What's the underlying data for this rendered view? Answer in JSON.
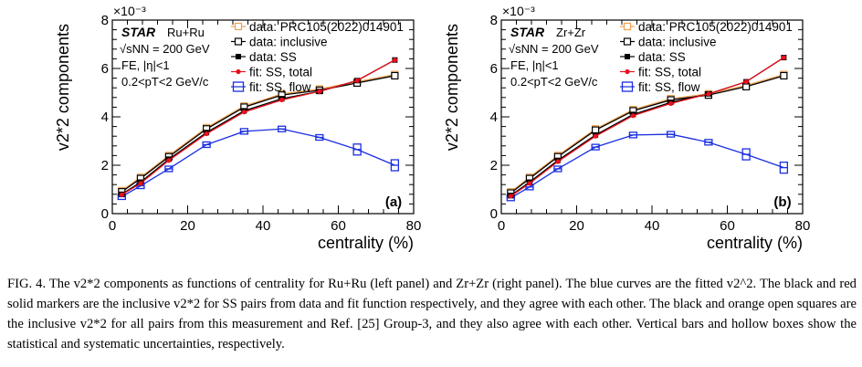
{
  "figure_label": "FIG. 4.",
  "caption": "The v2*2 components as functions of centrality for Ru+Ru (left panel) and Zr+Zr (right panel). The blue curves are the fitted v2^2. The black and red solid markers are the inclusive v2*2 for SS pairs from data and fit function respectively, and they agree with each other. The black and orange open squares are the inclusive v2*2 for all pairs from this measurement and Ref. [25] Group-3, and they also agree with each other. Vertical bars and hollow boxes show the statistical and systematic uncertainties, respectively.",
  "colors": {
    "black": "#000000",
    "red": "#e8101c",
    "orange": "#f0a050",
    "blue": "#1a2ee0"
  },
  "chart_data": [
    {
      "type": "line",
      "panel_label": "(a)",
      "experiment": "STAR",
      "system": "Ru+Ru",
      "energy": "√sNN = 200 GeV",
      "cut1": "FE, |η|<1",
      "cut2": "0.2<pT<2 GeV/c",
      "xlabel": "centrality (%)",
      "ylabel": "v2*2 components",
      "y_multiplier": "×10⁻³",
      "xlim": [
        0,
        80
      ],
      "ylim": [
        0,
        8
      ],
      "x_ticks": [
        0,
        20,
        40,
        60,
        80
      ],
      "y_ticks": [
        0,
        2,
        4,
        6,
        8
      ],
      "legend_position": "top-right",
      "series": [
        {
          "name": "data: PRC105(2022)014901",
          "color": "#f0a050",
          "marker": "open-square",
          "x": [
            2.5,
            7.5,
            15,
            25,
            35,
            45,
            55,
            65,
            75
          ],
          "y": [
            0.95,
            1.5,
            2.4,
            3.55,
            4.45,
            4.95,
            5.15,
            5.45,
            5.75
          ]
        },
        {
          "name": "data: inclusive",
          "color": "#000000",
          "marker": "open-square",
          "x": [
            2.5,
            7.5,
            15,
            25,
            35,
            45,
            55,
            65,
            75
          ],
          "y": [
            0.9,
            1.45,
            2.35,
            3.5,
            4.4,
            4.9,
            5.1,
            5.4,
            5.7
          ]
        },
        {
          "name": "data: SS",
          "color": "#000000",
          "marker": "filled-square",
          "x": [
            2.5,
            7.5,
            15,
            25,
            35,
            45,
            55,
            65,
            75
          ],
          "y": [
            0.8,
            1.3,
            2.25,
            3.35,
            4.25,
            4.75,
            5.05,
            5.5,
            6.35
          ]
        },
        {
          "name": "fit: SS, total",
          "color": "#e8101c",
          "marker": "filled-circle",
          "x": [
            2.5,
            7.5,
            15,
            25,
            35,
            45,
            55,
            65,
            75
          ],
          "y": [
            0.78,
            1.25,
            2.2,
            3.3,
            4.2,
            4.7,
            5.05,
            5.5,
            6.35
          ]
        },
        {
          "name": "fit: SS, flow",
          "color": "#1a2ee0",
          "marker": "open-box",
          "x": [
            2.5,
            7.5,
            15,
            25,
            35,
            45,
            55,
            65,
            75
          ],
          "y": [
            0.7,
            1.15,
            1.85,
            2.85,
            3.4,
            3.5,
            3.15,
            2.65,
            2.0
          ]
        }
      ]
    },
    {
      "type": "line",
      "panel_label": "(b)",
      "experiment": "STAR",
      "system": "Zr+Zr",
      "energy": "√sNN = 200 GeV",
      "cut1": "FE, |η|<1",
      "cut2": "0.2<pT<2 GeV/c",
      "xlabel": "centrality (%)",
      "ylabel": "v2*2 components",
      "y_multiplier": "×10⁻³",
      "xlim": [
        0,
        80
      ],
      "ylim": [
        0,
        8
      ],
      "x_ticks": [
        0,
        20,
        40,
        60,
        80
      ],
      "y_ticks": [
        0,
        2,
        4,
        6,
        8
      ],
      "legend_position": "top-right",
      "series": [
        {
          "name": "data: PRC105(2022)014901",
          "color": "#f0a050",
          "marker": "open-square",
          "x": [
            2.5,
            7.5,
            15,
            25,
            35,
            45,
            55,
            65,
            75
          ],
          "y": [
            0.9,
            1.5,
            2.4,
            3.5,
            4.3,
            4.75,
            4.95,
            5.3,
            5.75
          ]
        },
        {
          "name": "data: inclusive",
          "color": "#000000",
          "marker": "open-square",
          "x": [
            2.5,
            7.5,
            15,
            25,
            35,
            45,
            55,
            65,
            75
          ],
          "y": [
            0.85,
            1.45,
            2.35,
            3.45,
            4.25,
            4.7,
            4.9,
            5.25,
            5.7
          ]
        },
        {
          "name": "data: SS",
          "color": "#000000",
          "marker": "filled-square",
          "x": [
            2.5,
            7.5,
            15,
            25,
            35,
            45,
            55,
            65,
            75
          ],
          "y": [
            0.75,
            1.3,
            2.2,
            3.25,
            4.1,
            4.6,
            4.95,
            5.45,
            6.45
          ]
        },
        {
          "name": "fit: SS, total",
          "color": "#e8101c",
          "marker": "filled-circle",
          "x": [
            2.5,
            7.5,
            15,
            25,
            35,
            45,
            55,
            65,
            75
          ],
          "y": [
            0.72,
            1.25,
            2.15,
            3.2,
            4.05,
            4.55,
            4.95,
            5.45,
            6.45
          ]
        },
        {
          "name": "fit: SS, flow",
          "color": "#1a2ee0",
          "marker": "open-box",
          "x": [
            2.5,
            7.5,
            15,
            25,
            35,
            45,
            55,
            65,
            75
          ],
          "y": [
            0.65,
            1.1,
            1.85,
            2.75,
            3.25,
            3.28,
            2.95,
            2.45,
            1.9
          ]
        }
      ]
    }
  ]
}
